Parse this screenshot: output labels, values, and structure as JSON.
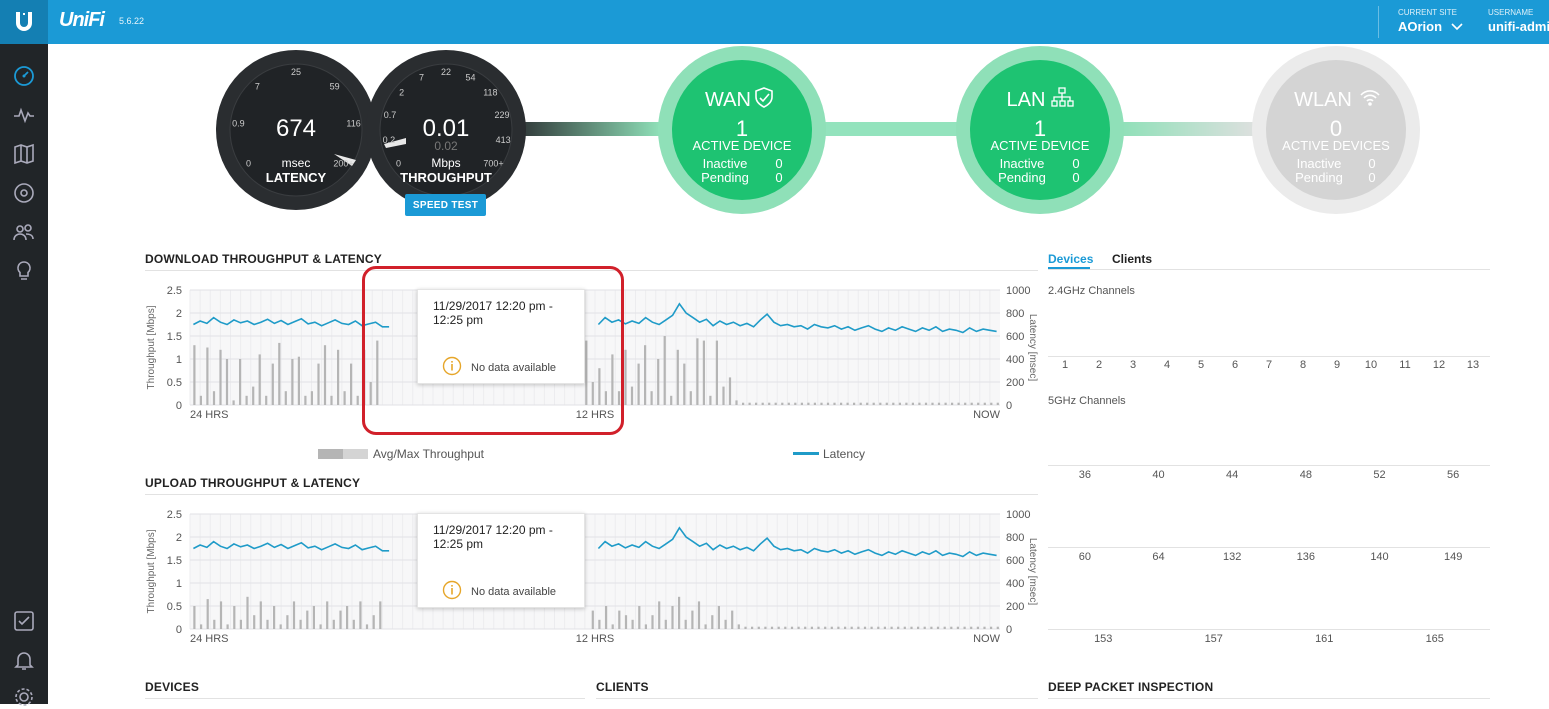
{
  "header": {
    "brand": "UniFi",
    "version": "5.6.22",
    "current_site_caption": "CURRENT SITE",
    "current_site": "AOrion",
    "username_caption": "USERNAME",
    "username": "unifi-admin"
  },
  "sidebar": {
    "top_icons": [
      "dashboard-icon",
      "statistics-icon",
      "map-icon",
      "devices-icon",
      "clients-icon",
      "insights-icon"
    ],
    "bottom_icons": [
      "tasks-icon",
      "alerts-icon",
      "settings-icon"
    ]
  },
  "gauges": {
    "latency": {
      "value": "674",
      "unit": "msec",
      "label": "LATENCY",
      "ticks": [
        "0",
        "0.9",
        "7",
        "25",
        "59",
        "116",
        "200+"
      ]
    },
    "throughput": {
      "value": "0.01",
      "secondary": "0.02",
      "unit": "Mbps",
      "label": "THROUGHPUT",
      "ticks": [
        "0",
        "0.2",
        "0.7",
        "2",
        "7",
        "22",
        "54",
        "118",
        "229",
        "413",
        "700+"
      ]
    },
    "speed_test_label": "SPEED TEST"
  },
  "status": {
    "wan": {
      "title": "WAN",
      "count": "1",
      "sub": "ACTIVE DEVICE",
      "inactive_label": "Inactive",
      "inactive": "0",
      "pending_label": "Pending",
      "pending": "0",
      "color": "#1ec372"
    },
    "lan": {
      "title": "LAN",
      "count": "1",
      "sub": "ACTIVE DEVICE",
      "inactive_label": "Inactive",
      "inactive": "0",
      "pending_label": "Pending",
      "pending": "0",
      "color": "#1ec372"
    },
    "wlan": {
      "title": "WLAN",
      "count": "0",
      "sub": "ACTIVE DEVICES",
      "inactive_label": "Inactive",
      "inactive": "0",
      "pending_label": "Pending",
      "pending": "0",
      "color": "#d4d4d4"
    }
  },
  "download": {
    "title": "DOWNLOAD THROUGHPUT & LATENCY",
    "tooltip_date": "11/29/2017 12:20 pm - 12:25 pm",
    "tooltip_msg": "No data available"
  },
  "upload": {
    "title": "UPLOAD THROUGHPUT & LATENCY",
    "tooltip_date": "11/29/2017 12:20 pm - 12:25 pm",
    "tooltip_msg": "No data available"
  },
  "legend": {
    "throughput": "Avg/Max Throughput",
    "latency": "Latency"
  },
  "chart_data": [
    {
      "type": "bar",
      "title": "DOWNLOAD THROUGHPUT & LATENCY",
      "ylabel": "Throughput [Mbps]",
      "y2label": "Latency [msec]",
      "ylim": [
        0,
        2.5
      ],
      "y2lim": [
        0,
        1000
      ],
      "yticks": [
        "0",
        "0.5",
        "1",
        "1.5",
        "2",
        "2.5"
      ],
      "y2ticks": [
        "0",
        "200",
        "400",
        "600",
        "800",
        "1000"
      ],
      "xticks": [
        "24 HRS",
        "12 HRS",
        "NOW"
      ],
      "series": [
        {
          "name": "Avg/Max Throughput",
          "kind": "bar",
          "color": "#b5b5b5",
          "values": [
            1.3,
            0.2,
            1.25,
            0.3,
            1.2,
            1.0,
            0.1,
            1.0,
            0.2,
            0.4,
            1.1,
            0.2,
            0.9,
            1.35,
            0.3,
            1.0,
            1.05,
            0.2,
            0.3,
            0.9,
            1.3,
            0.2,
            1.2,
            0.3,
            0.9,
            0.2,
            1.2,
            0.5,
            1.4,
            0,
            0,
            0,
            0,
            0,
            0,
            0,
            0,
            0,
            0,
            0,
            0,
            0,
            0,
            0,
            0,
            0,
            0,
            0,
            0,
            0,
            0,
            0,
            0,
            0,
            0,
            0,
            0,
            0,
            0,
            0,
            1.4,
            0.5,
            0.8,
            0.3,
            1.1,
            0.3,
            1.2,
            0.4,
            0.9,
            1.3,
            0.3,
            1.0,
            1.5,
            0.2,
            1.2,
            0.9,
            0.3,
            1.45,
            1.4,
            0.2,
            1.4,
            0.4,
            0.6,
            0.1,
            0.05,
            0.05,
            0.05,
            0.05,
            0.05,
            0.05,
            0.05,
            0.05,
            0.05,
            0.05,
            0.05,
            0.05,
            0.05,
            0.05,
            0.05,
            0.05,
            0.05,
            0.05,
            0.05,
            0.05,
            0.05,
            0.05,
            0.05,
            0.05,
            0.05,
            0.05,
            0.05,
            0.05,
            0.05,
            0.05,
            0.05,
            0.05,
            0.05,
            0.05,
            0.05,
            0.05,
            0.05,
            0.05,
            0.05,
            0.05
          ]
        },
        {
          "name": "Latency",
          "kind": "line",
          "color": "#1f9bc8",
          "values": [
            700,
            730,
            710,
            760,
            720,
            700,
            740,
            715,
            730,
            700,
            720,
            745,
            710,
            735,
            700,
            725,
            750,
            705,
            720,
            690,
            715,
            740,
            710,
            700,
            730,
            690,
            705,
            720,
            680,
            680,
            null,
            null,
            null,
            null,
            null,
            null,
            null,
            null,
            null,
            null,
            null,
            null,
            null,
            null,
            null,
            null,
            null,
            null,
            null,
            null,
            null,
            null,
            null,
            null,
            null,
            null,
            null,
            null,
            null,
            null,
            700,
            760,
            720,
            740,
            705,
            730,
            710,
            760,
            720,
            700,
            740,
            780,
            880,
            800,
            760,
            720,
            745,
            690,
            730,
            700,
            720,
            690,
            710,
            680,
            740,
            790,
            720,
            690,
            700,
            680,
            690,
            660,
            700,
            680,
            670,
            690,
            660,
            680,
            650,
            670,
            690,
            660,
            640,
            670,
            650,
            680,
            660,
            640,
            670,
            650,
            680,
            640,
            660,
            650,
            630,
            670,
            640,
            660,
            650,
            640
          ]
        }
      ]
    },
    {
      "type": "bar",
      "title": "UPLOAD THROUGHPUT & LATENCY",
      "ylabel": "Throughput [Mbps]",
      "y2label": "Latency [msec]",
      "ylim": [
        0,
        2.5
      ],
      "y2lim": [
        0,
        1000
      ],
      "yticks": [
        "0",
        "0.5",
        "1",
        "1.5",
        "2",
        "2.5"
      ],
      "y2ticks": [
        "0",
        "200",
        "400",
        "600",
        "800",
        "1000"
      ],
      "xticks": [
        "24 HRS",
        "12 HRS",
        "NOW"
      ],
      "series": [
        {
          "name": "Avg/Max Throughput",
          "kind": "bar",
          "color": "#b5b5b5",
          "values": [
            0.5,
            0.1,
            0.65,
            0.2,
            0.6,
            0.1,
            0.5,
            0.2,
            0.7,
            0.3,
            0.6,
            0.2,
            0.5,
            0.1,
            0.3,
            0.6,
            0.2,
            0.4,
            0.5,
            0.1,
            0.6,
            0.2,
            0.4,
            0.5,
            0.2,
            0.6,
            0.1,
            0.3,
            0.6,
            0,
            0,
            0,
            0,
            0,
            0,
            0,
            0,
            0,
            0,
            0,
            0,
            0,
            0,
            0,
            0,
            0,
            0,
            0,
            0,
            0,
            0,
            0,
            0,
            0,
            0,
            0,
            0,
            0,
            0,
            0,
            0.4,
            0.2,
            0.5,
            0.1,
            0.4,
            0.3,
            0.2,
            0.5,
            0.1,
            0.3,
            0.6,
            0.2,
            0.5,
            0.7,
            0.2,
            0.4,
            0.6,
            0.1,
            0.3,
            0.5,
            0.2,
            0.4,
            0.1,
            0.05,
            0.05,
            0.05,
            0.05,
            0.05,
            0.05,
            0.05,
            0.05,
            0.05,
            0.05,
            0.05,
            0.05,
            0.05,
            0.05,
            0.05,
            0.05,
            0.05,
            0.05,
            0.05,
            0.05,
            0.05,
            0.05,
            0.05,
            0.05,
            0.05,
            0.05,
            0.05,
            0.05,
            0.05,
            0.05,
            0.05,
            0.05,
            0.05,
            0.05,
            0.05,
            0.05,
            0.05,
            0.05,
            0.05
          ]
        },
        {
          "name": "Latency",
          "kind": "line",
          "color": "#1f9bc8",
          "values": [
            700,
            730,
            710,
            760,
            720,
            700,
            740,
            715,
            730,
            700,
            720,
            745,
            710,
            735,
            700,
            725,
            750,
            705,
            720,
            690,
            715,
            740,
            710,
            700,
            730,
            690,
            705,
            720,
            680,
            680,
            null,
            null,
            null,
            null,
            null,
            null,
            null,
            null,
            null,
            null,
            null,
            null,
            null,
            null,
            null,
            null,
            null,
            null,
            null,
            null,
            null,
            null,
            null,
            null,
            null,
            null,
            null,
            null,
            null,
            null,
            700,
            760,
            720,
            740,
            705,
            730,
            710,
            760,
            720,
            700,
            740,
            780,
            880,
            800,
            760,
            720,
            745,
            690,
            730,
            700,
            720,
            690,
            710,
            680,
            740,
            790,
            720,
            690,
            700,
            680,
            690,
            660,
            700,
            680,
            670,
            690,
            660,
            680,
            650,
            670,
            690,
            660,
            640,
            670,
            650,
            680,
            660,
            640,
            670,
            650,
            680,
            640,
            660,
            650,
            630,
            670,
            640,
            660,
            650,
            640
          ]
        }
      ]
    }
  ],
  "right_panel": {
    "tab_devices": "Devices",
    "tab_clients": "Clients",
    "ch24_label": "2.4GHz Channels",
    "ch24": [
      "1",
      "2",
      "3",
      "4",
      "5",
      "6",
      "7",
      "8",
      "9",
      "10",
      "11",
      "12",
      "13"
    ],
    "ch5_label": "5GHz Channels",
    "ch5_row1": [
      "36",
      "40",
      "44",
      "48",
      "52",
      "56"
    ],
    "ch5_row2": [
      "60",
      "64",
      "132",
      "136",
      "140",
      "149"
    ],
    "ch5_row3": [
      "153",
      "157",
      "161",
      "165"
    ]
  },
  "bottom": {
    "devices": "DEVICES",
    "clients": "CLIENTS",
    "dpi": "DEEP PACKET INSPECTION"
  }
}
